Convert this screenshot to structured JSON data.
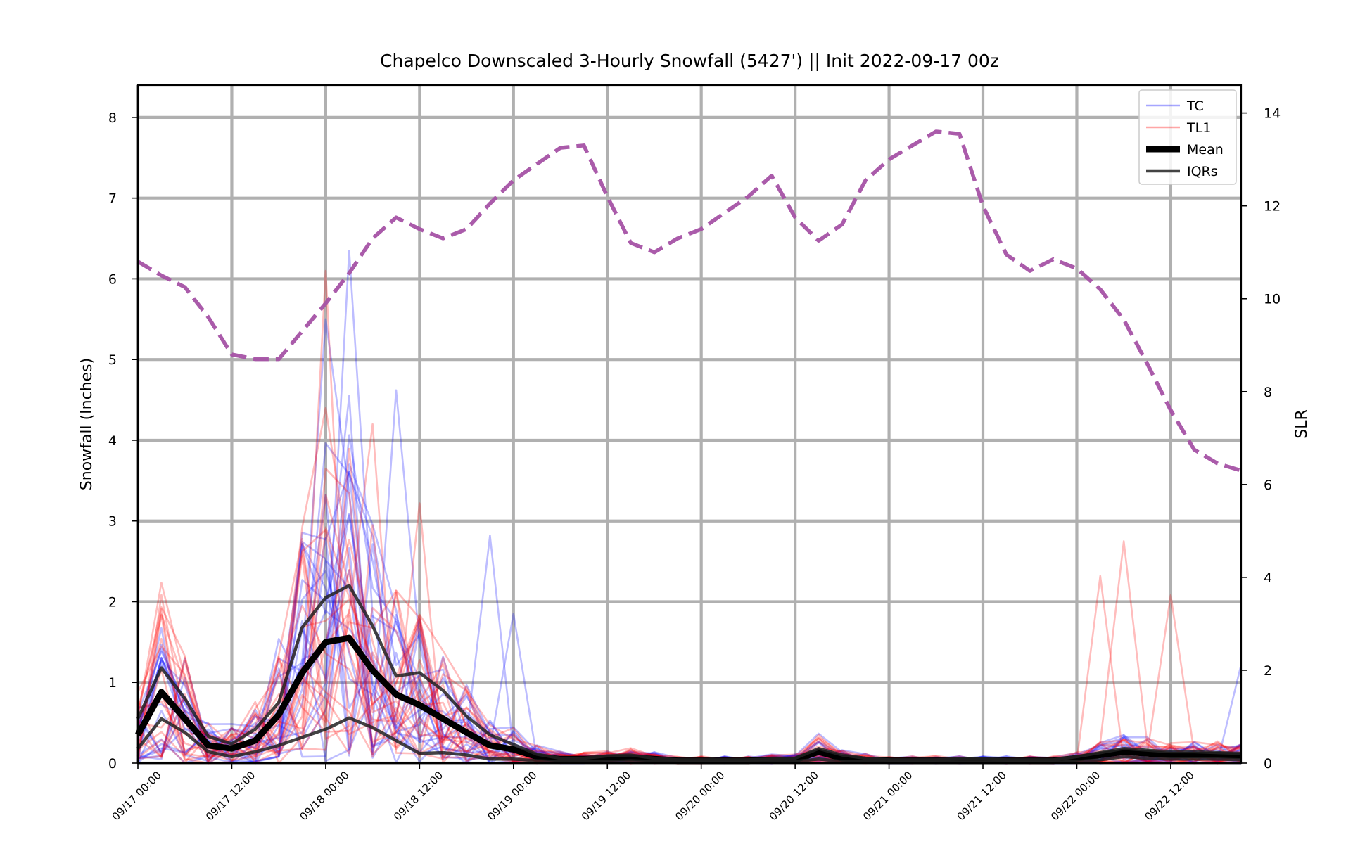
{
  "chart_data": {
    "type": "line",
    "title": "Chapelco Downscaled 3-Hourly Snowfall (5427') || Init 2022-09-17 00z",
    "ylabel": "Snowfall (Inches)",
    "y2label": "SLR",
    "ylim": [
      0,
      8.4
    ],
    "y2lim": [
      0,
      14.6
    ],
    "yticks": [
      0,
      1,
      2,
      3,
      4,
      5,
      6,
      7,
      8
    ],
    "y2ticks": [
      0,
      2,
      4,
      6,
      8,
      10,
      12,
      14
    ],
    "xlim_hours": [
      0,
      141
    ],
    "x_tick_hours": [
      0,
      12,
      24,
      36,
      48,
      60,
      72,
      84,
      96,
      108,
      120,
      132
    ],
    "x_tick_labels": [
      "09/17 00:00",
      "09/17 12:00",
      "09/18 00:00",
      "09/18 12:00",
      "09/19 00:00",
      "09/19 12:00",
      "09/20 00:00",
      "09/20 12:00",
      "09/21 00:00",
      "09/21 12:00",
      "09/22 00:00",
      "09/22 12:00"
    ],
    "grid": true,
    "legend_position": "top-right",
    "legend": [
      {
        "label": "TC",
        "color": "#0000ff",
        "style": "thin-transparent"
      },
      {
        "label": "TL1",
        "color": "#ff0000",
        "style": "thin-transparent"
      },
      {
        "label": "Mean",
        "color": "#000000",
        "style": "thick"
      },
      {
        "label": "IQRs",
        "color": "#222222",
        "style": "medium"
      }
    ],
    "time_hours": [
      0,
      3,
      6,
      9,
      12,
      15,
      18,
      21,
      24,
      27,
      30,
      33,
      36,
      39,
      42,
      45,
      48,
      51,
      54,
      57,
      60,
      63,
      66,
      69,
      72,
      75,
      78,
      81,
      84,
      87,
      90,
      93,
      96,
      99,
      102,
      105,
      108,
      111,
      114,
      117,
      120,
      123,
      126,
      129,
      132,
      135,
      138,
      141
    ],
    "series": [
      {
        "name": "Mean",
        "axis": "left",
        "values": [
          0.35,
          0.88,
          0.55,
          0.22,
          0.18,
          0.28,
          0.6,
          1.12,
          1.5,
          1.55,
          1.15,
          0.85,
          0.72,
          0.55,
          0.38,
          0.22,
          0.17,
          0.08,
          0.05,
          0.05,
          0.06,
          0.07,
          0.05,
          0.03,
          0.03,
          0.03,
          0.03,
          0.04,
          0.04,
          0.14,
          0.06,
          0.04,
          0.03,
          0.03,
          0.03,
          0.03,
          0.03,
          0.03,
          0.03,
          0.03,
          0.06,
          0.1,
          0.14,
          0.12,
          0.1,
          0.1,
          0.1,
          0.09
        ]
      },
      {
        "name": "IQR upper",
        "axis": "left",
        "values": [
          0.55,
          1.18,
          0.8,
          0.33,
          0.24,
          0.42,
          0.75,
          1.68,
          2.05,
          2.2,
          1.7,
          1.08,
          1.12,
          0.9,
          0.58,
          0.35,
          0.23,
          0.11,
          0.06,
          0.06,
          0.09,
          0.1,
          0.06,
          0.04,
          0.04,
          0.04,
          0.04,
          0.05,
          0.06,
          0.18,
          0.1,
          0.06,
          0.04,
          0.04,
          0.04,
          0.05,
          0.05,
          0.04,
          0.04,
          0.04,
          0.08,
          0.13,
          0.18,
          0.16,
          0.14,
          0.14,
          0.13,
          0.12
        ]
      },
      {
        "name": "IQR lower",
        "axis": "left",
        "values": [
          0.18,
          0.55,
          0.38,
          0.14,
          0.08,
          0.14,
          0.22,
          0.32,
          0.42,
          0.56,
          0.44,
          0.28,
          0.12,
          0.13,
          0.1,
          0.05,
          0.05,
          0.03,
          0.02,
          0.02,
          0.02,
          0.03,
          0.02,
          0.01,
          0.01,
          0.01,
          0.01,
          0.02,
          0.02,
          0.05,
          0.02,
          0.02,
          0.01,
          0.01,
          0.01,
          0.01,
          0.01,
          0.01,
          0.01,
          0.01,
          0.02,
          0.04,
          0.08,
          0.06,
          0.05,
          0.05,
          0.05,
          0.04
        ]
      },
      {
        "name": "SLR",
        "axis": "right",
        "style": "dashed",
        "color": "#a552a5",
        "values": [
          10.8,
          10.5,
          10.25,
          9.6,
          8.8,
          8.7,
          8.7,
          9.3,
          9.9,
          10.55,
          11.3,
          11.75,
          11.5,
          11.3,
          11.5,
          12.05,
          12.55,
          12.9,
          13.25,
          13.3,
          12.2,
          11.2,
          11.0,
          11.3,
          11.5,
          11.85,
          12.2,
          12.65,
          11.75,
          11.25,
          11.6,
          12.55,
          13.0,
          13.3,
          13.6,
          13.55,
          12.0,
          10.95,
          10.6,
          10.85,
          10.65,
          10.2,
          9.55,
          8.6,
          7.6,
          6.75,
          6.45,
          6.3
        ]
      }
    ],
    "ensemble": {
      "members_per_model": 20,
      "models": [
        {
          "name": "TC",
          "color": "#0000ff",
          "highlight_peaks": [
            {
              "hour": 24,
              "value": 5.5
            },
            {
              "hour": 27,
              "value": 6.35
            },
            {
              "hour": 27,
              "value": 4.55
            },
            {
              "hour": 33,
              "value": 4.62
            },
            {
              "hour": 45,
              "value": 2.82
            },
            {
              "hour": 48,
              "value": 1.85
            },
            {
              "hour": 141,
              "value": 1.22
            }
          ]
        },
        {
          "name": "TL1",
          "color": "#ff0000",
          "highlight_peaks": [
            {
              "hour": 24,
              "value": 6.1
            },
            {
              "hour": 24,
              "value": 4.4
            },
            {
              "hour": 30,
              "value": 4.2
            },
            {
              "hour": 36,
              "value": 3.22
            },
            {
              "hour": 123,
              "value": 2.32
            },
            {
              "hour": 126,
              "value": 2.75
            },
            {
              "hour": 132,
              "value": 2.08
            }
          ]
        }
      ]
    }
  }
}
